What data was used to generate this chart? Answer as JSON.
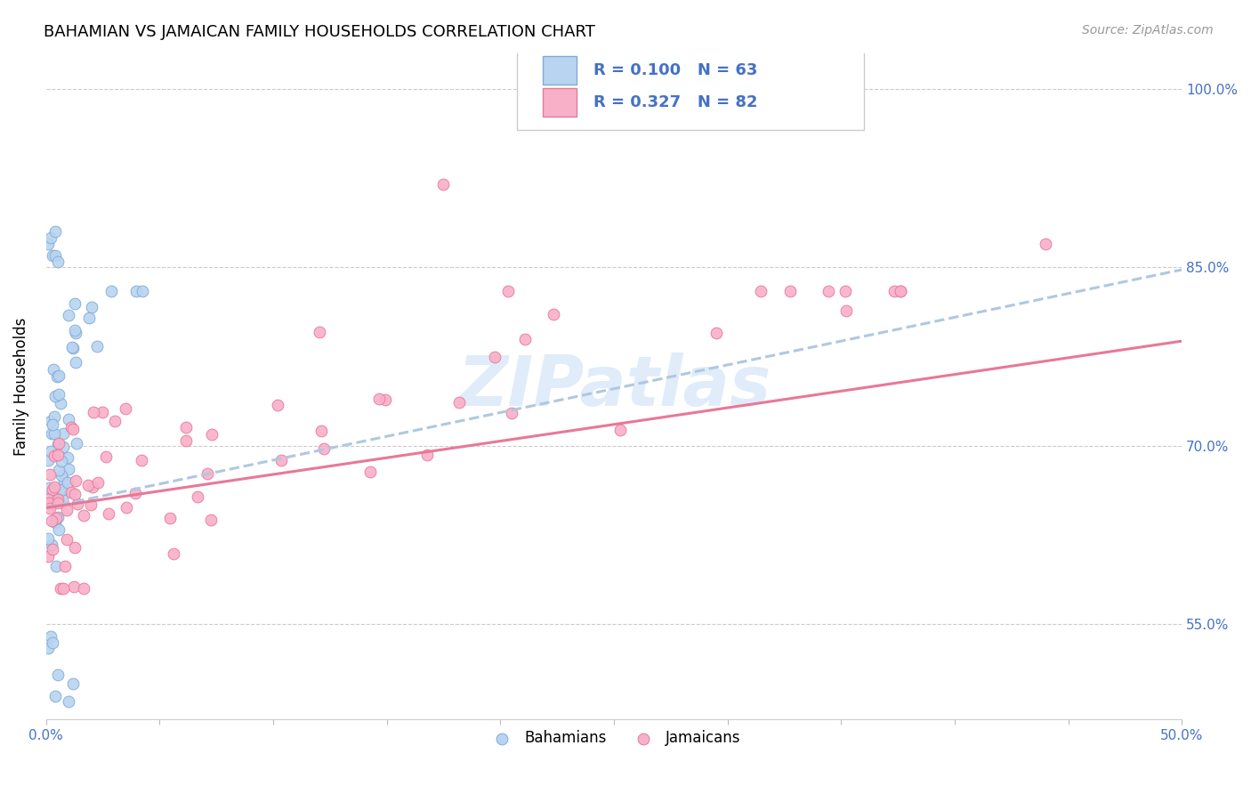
{
  "title": "BAHAMIAN VS JAMAICAN FAMILY HOUSEHOLDS CORRELATION CHART",
  "source": "Source: ZipAtlas.com",
  "ylabel": "Family Households",
  "bahamian_color": "#b8d4f0",
  "bahamian_edge": "#80aad8",
  "jamaican_color": "#f8b0c8",
  "jamaican_edge": "#e87898",
  "trend_bah_color": "#b0c8e0",
  "trend_jam_color": "#e87898",
  "watermark": "ZIPatlas",
  "watermark_color": "#cce0f5",
  "legend_text_color": "#4472c4",
  "tick_color": "#4472c4",
  "grid_color": "#cccccc",
  "title_fontsize": 13,
  "source_fontsize": 10,
  "tick_fontsize": 11,
  "ylabel_fontsize": 12,
  "xlim": [
    0.0,
    0.5
  ],
  "ylim": [
    0.47,
    1.03
  ],
  "ytick_vals": [
    0.55,
    0.7,
    0.85,
    1.0
  ],
  "ytick_labels": [
    "55.0%",
    "70.0%",
    "85.0%",
    "100.0%"
  ],
  "xtick_vals": [
    0.0,
    0.05,
    0.1,
    0.15,
    0.2,
    0.25,
    0.3,
    0.35,
    0.4,
    0.45,
    0.5
  ],
  "bah_trend_x0": 0.0,
  "bah_trend_y0": 0.648,
  "bah_trend_x1": 0.5,
  "bah_trend_y1": 0.848,
  "jam_trend_x0": 0.0,
  "jam_trend_y0": 0.648,
  "jam_trend_x1": 0.5,
  "jam_trend_y1": 0.788
}
